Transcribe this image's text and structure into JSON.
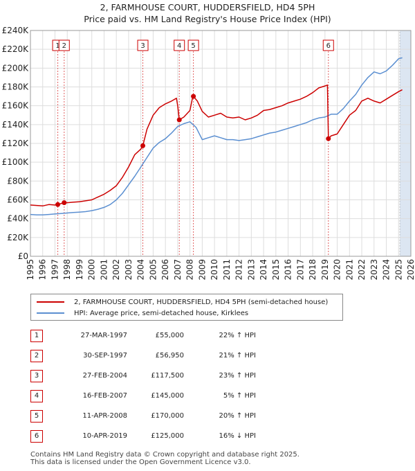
{
  "title_line1": "2, FARMHOUSE COURT, HUDDERSFIELD, HD4 5PH",
  "title_line2": "Price paid vs. HM Land Registry's House Price Index (HPI)",
  "legend": {
    "property_label": "2, FARMHOUSE COURT, HUDDERSFIELD, HD4 5PH (semi-detached house)",
    "hpi_label": "HPI: Average price, semi-detached house, Kirklees"
  },
  "colors": {
    "property": "#cc0000",
    "hpi": "#5b8fd1",
    "shade": "#dce6f2",
    "marker_line": "#e06060",
    "grid": "#dddddd"
  },
  "sales": [
    {
      "num": "1",
      "date": "27-MAR-1997",
      "price": "£55,000",
      "hpi": "22% ↑ HPI"
    },
    {
      "num": "2",
      "date": "30-SEP-1997",
      "price": "£56,950",
      "hpi": "21% ↑ HPI"
    },
    {
      "num": "3",
      "date": "27-FEB-2004",
      "price": "£117,500",
      "hpi": "23% ↑ HPI"
    },
    {
      "num": "4",
      "date": "16-FEB-2007",
      "price": "£145,000",
      "hpi": "5% ↑ HPI"
    },
    {
      "num": "5",
      "date": "11-APR-2008",
      "price": "£170,000",
      "hpi": "20% ↑ HPI"
    },
    {
      "num": "6",
      "date": "10-APR-2019",
      "price": "£125,000",
      "hpi": "16% ↓ HPI"
    }
  ],
  "footer_line1": "Contains HM Land Registry data © Crown copyright and database right 2025.",
  "footer_line2": "This data is licensed under the Open Government Licence v3.0.",
  "chart_data": {
    "type": "line",
    "title": "2, FARMHOUSE COURT, HUDDERSFIELD, HD4 5PH",
    "subtitle": "Price paid vs. HM Land Registry's House Price Index (HPI)",
    "xlabel": "",
    "ylabel": "",
    "xlim": [
      1995,
      2026
    ],
    "ylim": [
      0,
      240000
    ],
    "grid": true,
    "legend_position": "bottom",
    "x_ticks": [
      1995,
      1996,
      1997,
      1998,
      1999,
      2000,
      2001,
      2002,
      2003,
      2004,
      2005,
      2006,
      2007,
      2008,
      2009,
      2010,
      2011,
      2012,
      2013,
      2014,
      2015,
      2016,
      2017,
      2018,
      2019,
      2020,
      2021,
      2022,
      2023,
      2024,
      2025,
      2026
    ],
    "y_ticks": [
      0,
      20000,
      40000,
      60000,
      80000,
      100000,
      120000,
      140000,
      160000,
      180000,
      200000,
      220000,
      240000
    ],
    "y_tick_labels": [
      "£0",
      "£20K",
      "£40K",
      "£60K",
      "£80K",
      "£100K",
      "£120K",
      "£140K",
      "£160K",
      "£180K",
      "£200K",
      "£220K",
      "£240K"
    ],
    "future_shade_from": 2025.1,
    "sale_markers": [
      {
        "label": "1",
        "x": 1997.23,
        "y": 55000
      },
      {
        "label": "2",
        "x": 1997.75,
        "y": 56950
      },
      {
        "label": "3",
        "x": 2004.16,
        "y": 117500
      },
      {
        "label": "4",
        "x": 2007.13,
        "y": 145000
      },
      {
        "label": "5",
        "x": 2008.28,
        "y": 170000
      },
      {
        "label": "6",
        "x": 2019.28,
        "y": 125000
      }
    ],
    "series": [
      {
        "name": "2, FARMHOUSE COURT, HUDDERSFIELD, HD4 5PH (semi-detached house)",
        "x": [
          1995,
          1995.5,
          1996,
          1996.5,
          1997,
          1997.23,
          1997.5,
          1997.75,
          1998,
          1998.5,
          1999,
          1999.5,
          2000,
          2000.5,
          2001,
          2001.5,
          2002,
          2002.5,
          2003,
          2003.5,
          2004,
          2004.16,
          2004.5,
          2005,
          2005.5,
          2006,
          2006.5,
          2006.9,
          2007.0,
          2007.13,
          2007.5,
          2008,
          2008.2,
          2008.28,
          2008.6,
          2009,
          2009.5,
          2010,
          2010.5,
          2011,
          2011.5,
          2012,
          2012.5,
          2013,
          2013.5,
          2014,
          2014.5,
          2015,
          2015.5,
          2016,
          2016.5,
          2017,
          2017.5,
          2018,
          2018.5,
          2019,
          2019.2,
          2019.28,
          2019.5,
          2020,
          2020.5,
          2021,
          2021.5,
          2022,
          2022.5,
          2023,
          2023.5,
          2024,
          2024.5,
          2025,
          2025.3
        ],
        "y": [
          54500,
          54000,
          53500,
          55000,
          54500,
          55000,
          56000,
          56950,
          57000,
          57500,
          58000,
          59000,
          60000,
          63000,
          66000,
          70000,
          75000,
          84000,
          95000,
          108000,
          114000,
          117500,
          135000,
          150000,
          158000,
          162000,
          165000,
          168000,
          160000,
          145000,
          148000,
          155000,
          168000,
          170000,
          165000,
          154000,
          148000,
          150000,
          152000,
          148000,
          147000,
          148000,
          145000,
          147000,
          150000,
          155000,
          156000,
          158000,
          160000,
          163000,
          165000,
          167000,
          170000,
          174000,
          179000,
          181000,
          182000,
          125000,
          128000,
          130000,
          140000,
          150000,
          155000,
          165000,
          168000,
          165000,
          163000,
          167000,
          171000,
          175000,
          177000
        ]
      },
      {
        "name": "HPI: Average price, semi-detached house, Kirklees",
        "x": [
          1995,
          1995.5,
          1996,
          1996.5,
          1997,
          1997.5,
          1998,
          1998.5,
          1999,
          1999.5,
          2000,
          2000.5,
          2001,
          2001.5,
          2002,
          2002.5,
          2003,
          2003.5,
          2004,
          2004.5,
          2005,
          2005.5,
          2006,
          2006.5,
          2007,
          2007.5,
          2008,
          2008.5,
          2009,
          2009.5,
          2010,
          2010.5,
          2011,
          2011.5,
          2012,
          2012.5,
          2013,
          2013.5,
          2014,
          2014.5,
          2015,
          2015.5,
          2016,
          2016.5,
          2017,
          2017.5,
          2018,
          2018.5,
          2019,
          2019.5,
          2020,
          2020.5,
          2021,
          2021.5,
          2022,
          2022.5,
          2023,
          2023.5,
          2024,
          2024.5,
          2025,
          2025.3
        ],
        "y": [
          44500,
          44000,
          44000,
          44500,
          45000,
          45500,
          46000,
          46500,
          47000,
          47500,
          48500,
          50000,
          52000,
          55000,
          60000,
          67000,
          76000,
          85000,
          95000,
          105000,
          115000,
          121000,
          125000,
          131000,
          138000,
          141000,
          143000,
          137000,
          124000,
          126000,
          128000,
          126000,
          124000,
          124000,
          123000,
          124000,
          125000,
          127000,
          129000,
          131000,
          132000,
          134000,
          136000,
          138000,
          140000,
          142000,
          145000,
          147000,
          148000,
          151000,
          151000,
          157000,
          165000,
          172000,
          182000,
          190000,
          196000,
          194000,
          197000,
          203000,
          210000,
          211000
        ]
      }
    ]
  }
}
